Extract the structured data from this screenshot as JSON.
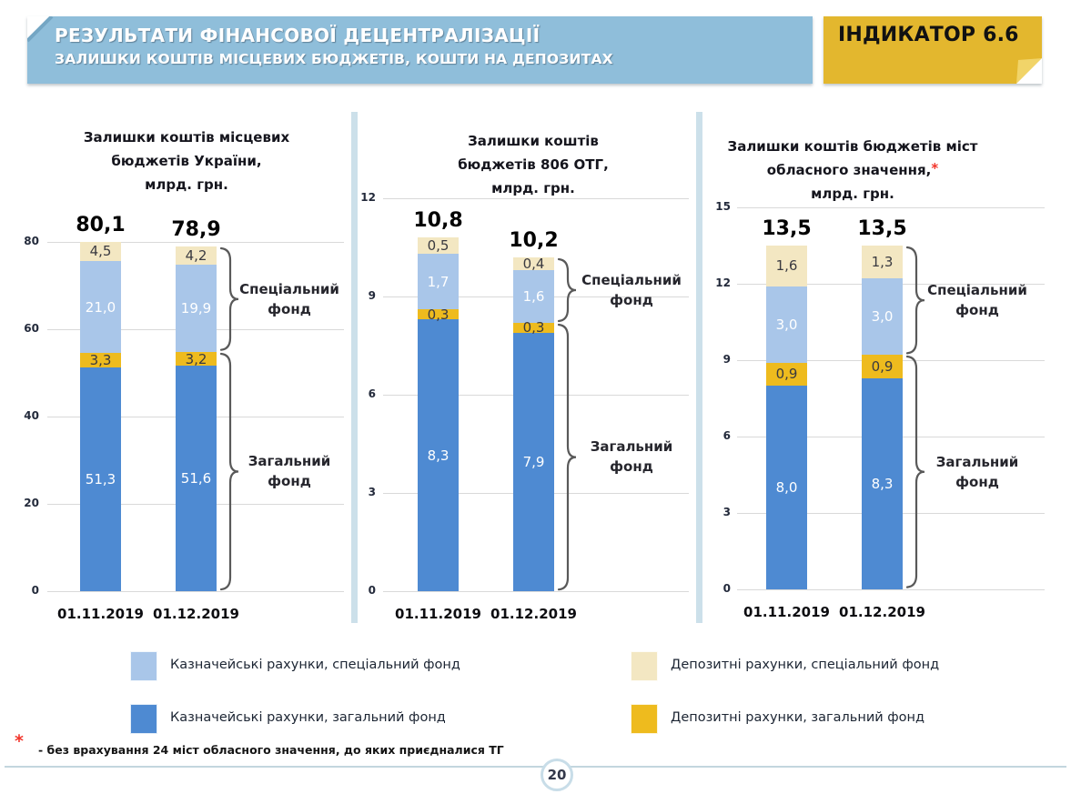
{
  "header": {
    "title_line1": "РЕЗУЛЬТАТИ ФІНАНСОВОЇ ДЕЦЕНТРАЛІЗАЦІЇ",
    "title_line2": "ЗАЛИШКИ КОШТІВ МІСЦЕВИХ БЮДЖЕТІВ, КОШТИ НА ДЕПОЗИТАХ",
    "indicator_badge": "ІНДИКАТОР 6.6"
  },
  "colors": {
    "banner_bg": "#8fbeda",
    "banner_fold": "#74a6c4",
    "badge_bg": "#e3b72e",
    "badge_fold": "#f1d469",
    "treasury_special": "#a9c6e9",
    "treasury_general": "#4e8ad2",
    "deposit_special": "#f3e7c2",
    "deposit_general": "#eebb1e",
    "gridline": "#d9d9d9",
    "brace": "#595959",
    "divider": "#cce0ea",
    "footnote_red": "#f2352b"
  },
  "chart_data": [
    {
      "type": "bar",
      "stacked": true,
      "title": "Залишки коштів місцевих бюджетів України, млрд. грн.",
      "title_lines": [
        "Залишки коштів місцевих",
        "бюджетів України,",
        "млрд. грн."
      ],
      "asterisk_line": null,
      "asterisk_char": "*",
      "categories": [
        "01.11.2019",
        "01.12.2019"
      ],
      "totals": [
        "80,1",
        "78,9"
      ],
      "ylim": [
        0,
        80
      ],
      "yticks": [
        0,
        20,
        40,
        60,
        80
      ],
      "series": [
        {
          "key": "treasury_general",
          "name": "Казначейські рахунки, загальний фонд",
          "values": [
            51.3,
            51.6
          ],
          "labels": [
            "51,3",
            "51,6"
          ],
          "label_style": "light"
        },
        {
          "key": "deposit_general",
          "name": "Депозитні рахунки, загальний фонд",
          "values": [
            3.3,
            3.2
          ],
          "labels": [
            "3,3",
            "3,2"
          ],
          "label_style": "dark"
        },
        {
          "key": "treasury_special",
          "name": "Казначейські рахунки, спеціальний фонд",
          "values": [
            21.0,
            19.9
          ],
          "labels": [
            "21,0",
            "19,9"
          ],
          "label_style": "light"
        },
        {
          "key": "deposit_special",
          "name": "Депозитні рахунки, спеціальний фонд",
          "values": [
            4.5,
            4.2
          ],
          "labels": [
            "4,5",
            "4,2"
          ],
          "label_style": "dark"
        }
      ],
      "braces": [
        {
          "label_lines": [
            "Спеціальний",
            "фонд"
          ],
          "covers": [
            "treasury_special",
            "deposit_special"
          ]
        },
        {
          "label_lines": [
            "Загальний",
            "фонд"
          ],
          "covers": [
            "treasury_general",
            "deposit_general"
          ]
        }
      ]
    },
    {
      "type": "bar",
      "stacked": true,
      "title": "Залишки коштів бюджетів 806 ОТГ, млрд. грн.",
      "title_lines": [
        "Залишки коштів",
        "бюджетів 806 ОТГ,",
        "млрд. грн."
      ],
      "asterisk_line": null,
      "asterisk_char": "*",
      "categories": [
        "01.11.2019",
        "01.12.2019"
      ],
      "totals": [
        "10,8",
        "10,2"
      ],
      "ylim": [
        0,
        12
      ],
      "yticks": [
        0,
        3,
        6,
        9,
        12
      ],
      "series": [
        {
          "key": "treasury_general",
          "name": "Казначейські рахунки, загальний фонд",
          "values": [
            8.3,
            7.9
          ],
          "labels": [
            "8,3",
            "7,9"
          ],
          "label_style": "light"
        },
        {
          "key": "deposit_general",
          "name": "Депозитні рахунки, загальний фонд",
          "values": [
            0.3,
            0.3
          ],
          "labels": [
            "0,3",
            "0,3"
          ],
          "label_style": "dark"
        },
        {
          "key": "treasury_special",
          "name": "Казначейські рахунки, спеціальний фонд",
          "values": [
            1.7,
            1.6
          ],
          "labels": [
            "1,7",
            "1,6"
          ],
          "label_style": "light"
        },
        {
          "key": "deposit_special",
          "name": "Депозитні рахунки, спеціальний фонд",
          "values": [
            0.5,
            0.4
          ],
          "labels": [
            "0,5",
            "0,4"
          ],
          "label_style": "dark"
        }
      ],
      "braces": [
        {
          "label_lines": [
            "Спеціальний",
            "фонд"
          ],
          "covers": [
            "treasury_special",
            "deposit_special"
          ]
        },
        {
          "label_lines": [
            "Загальний",
            "фонд"
          ],
          "covers": [
            "treasury_general",
            "deposit_general"
          ]
        }
      ]
    },
    {
      "type": "bar",
      "stacked": true,
      "title": "Залишки коштів бюджетів міст обласного значення,* млрд. грн.",
      "title_lines": [
        "Залишки коштів бюджетів міст",
        "обласного значення,",
        "млрд. грн."
      ],
      "asterisk_line": 1,
      "asterisk_char": "*",
      "categories": [
        "01.11.2019",
        "01.12.2019"
      ],
      "totals": [
        "13,5",
        "13,5"
      ],
      "ylim": [
        0,
        15
      ],
      "yticks": [
        0,
        3,
        6,
        9,
        12,
        15
      ],
      "series": [
        {
          "key": "treasury_general",
          "name": "Казначейські рахунки, загальний фонд",
          "values": [
            8.0,
            8.3
          ],
          "labels": [
            "8,0",
            "8,3"
          ],
          "label_style": "light"
        },
        {
          "key": "deposit_general",
          "name": "Депозитні рахунки, загальний фонд",
          "values": [
            0.9,
            0.9
          ],
          "labels": [
            "0,9",
            "0,9"
          ],
          "label_style": "dark"
        },
        {
          "key": "treasury_special",
          "name": "Казначейські рахунки, спеціальний фонд",
          "values": [
            3.0,
            3.0
          ],
          "labels": [
            "3,0",
            "3,0"
          ],
          "label_style": "light"
        },
        {
          "key": "deposit_special",
          "name": "Депозитні рахунки, спеціальний фонд",
          "values": [
            1.6,
            1.3
          ],
          "labels": [
            "1,6",
            "1,3"
          ],
          "label_style": "dark"
        }
      ],
      "braces": [
        {
          "label_lines": [
            "Спеціальний",
            "фонд"
          ],
          "covers": [
            "treasury_special",
            "deposit_special"
          ]
        },
        {
          "label_lines": [
            "Загальний",
            "фонд"
          ],
          "covers": [
            "treasury_general",
            "deposit_general"
          ]
        }
      ]
    }
  ],
  "legend": {
    "items": [
      {
        "key": "treasury_special",
        "label": "Казначейські рахунки, спеціальний фонд"
      },
      {
        "key": "treasury_general",
        "label": "Казначейські рахунки, загальний фонд"
      },
      {
        "key": "deposit_special",
        "label": "Депозитні рахунки, спеціальний фонд"
      },
      {
        "key": "deposit_general",
        "label": "Депозитні рахунки, загальний фонд"
      }
    ]
  },
  "footnote": {
    "marker": "*",
    "text": "- без врахування 24 міст обласного значення, до яких приєдналися ТГ"
  },
  "page_number": "20"
}
